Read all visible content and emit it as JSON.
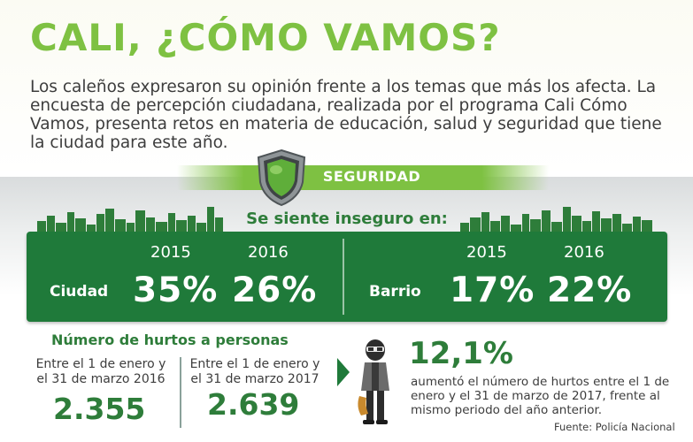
{
  "title": "CALI, ¿CÓMO VAMOS?",
  "intro": "Los caleños expresaron su opinión frente a los temas que más los afecta. La encuesta de percepción ciudadana, realizada por el programa Cali Cómo Vamos, presenta retos en materia de educación, salud y seguridad que tiene la ciudad para este año.",
  "section": {
    "label": "SEGURIDAD",
    "icon": "shield-icon"
  },
  "insecurity": {
    "heading": "Se siente inseguro en:",
    "ciudad": {
      "label": "Ciudad",
      "year1": "2015",
      "value1": "35%",
      "year2": "2016",
      "value2": "26%"
    },
    "barrio": {
      "label": "Barrio",
      "year1": "2015",
      "value1": "17%",
      "year2": "2016",
      "value2": "22%"
    }
  },
  "hurtos": {
    "title": "Número de hurtos a personas",
    "period1": {
      "text": "Entre el 1 de enero y el 31 de marzo 2016",
      "value": "2.355"
    },
    "period2": {
      "text": "Entre el 1 de enero y el 31 de marzo 2017",
      "value": "2.639"
    },
    "increase": "12,1%",
    "description": "aumentó el número de hurtos entre el 1 de enero y el 31 de marzo de  2017, frente al mismo periodo del año anterior.",
    "source": "Fuente: Policía Nacional"
  },
  "colors": {
    "light_green": "#7ec142",
    "dark_green": "#1f7a3a",
    "text_green": "#2e7d3a"
  }
}
